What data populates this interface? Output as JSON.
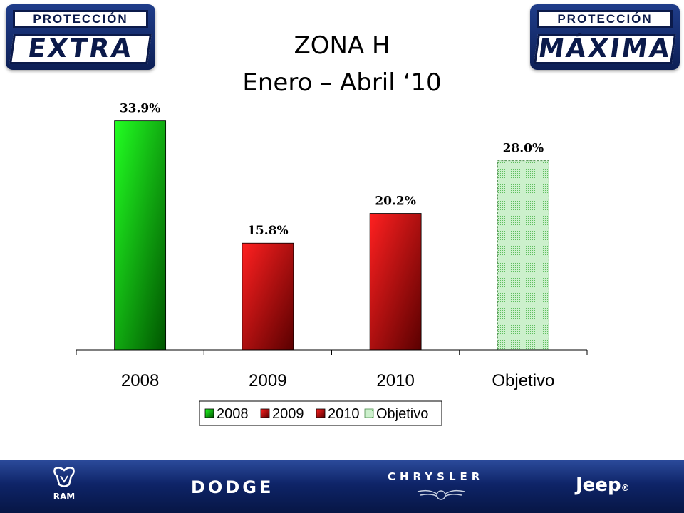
{
  "header": {
    "title_line1": "ZONA H",
    "title_line2": "Enero – Abril ‘10",
    "logo_left": {
      "top": "PROTECCIÓN",
      "bottom": "EXTRA"
    },
    "logo_right": {
      "top": "PROTECCIÓN",
      "bottom": "MÁXIMA"
    }
  },
  "chart_data": {
    "type": "bar",
    "title": "",
    "xlabel": "",
    "ylabel": "",
    "categories": [
      "2008",
      "2009",
      "2010",
      "Objetivo"
    ],
    "values": [
      33.9,
      15.8,
      20.2,
      28.0
    ],
    "data_labels": [
      "33.9%",
      "15.8%",
      "20.2%",
      "28.0%"
    ],
    "ylim": [
      0,
      36.5
    ],
    "grid": false,
    "legend_position": "bottom",
    "legend": [
      "2008",
      "2009",
      "2010",
      "Objetivo"
    ],
    "colors": [
      "#00cc00",
      "#e00000",
      "#e00000",
      "#ccf0cc"
    ]
  },
  "footer": {
    "brands": [
      "RAM",
      "DODGE",
      "CHRYSLER",
      "Jeep"
    ],
    "jeep_mark": "®"
  }
}
